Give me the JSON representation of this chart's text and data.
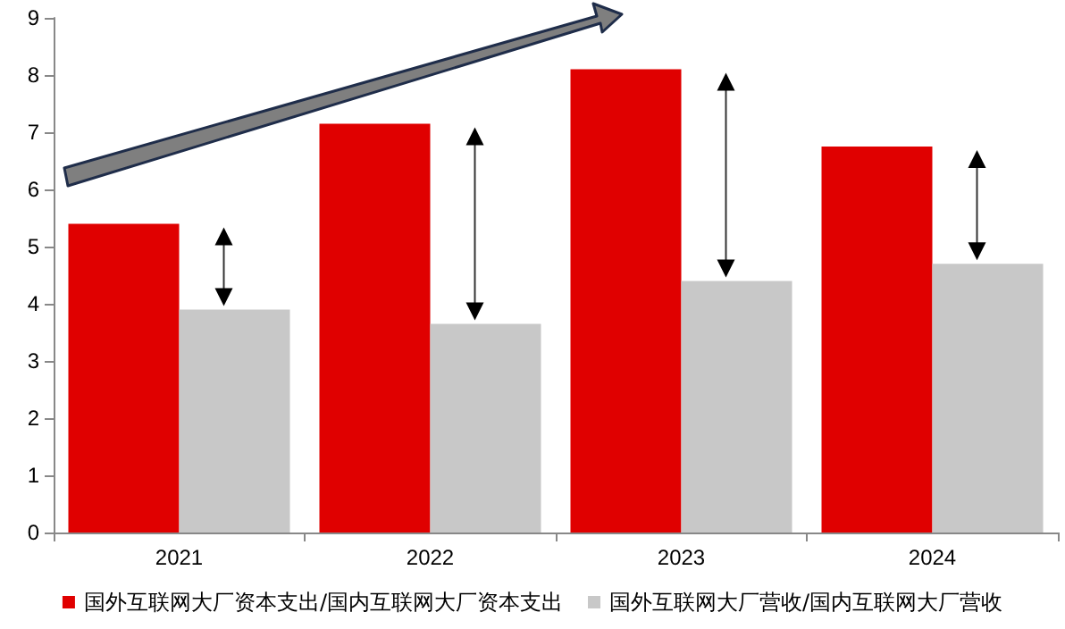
{
  "chart_data": {
    "type": "bar",
    "categories": [
      "2021",
      "2022",
      "2023",
      "2024"
    ],
    "series": [
      {
        "name": "国外互联网大厂资本支出/国内互联网大厂资本支出",
        "color": "#e00000",
        "values": [
          5.4,
          7.15,
          8.1,
          6.75
        ]
      },
      {
        "name": "国外互联网大厂营收/国内互联网大厂营收",
        "color": "#c8c8c8",
        "values": [
          3.9,
          3.65,
          4.4,
          4.7
        ]
      }
    ],
    "ylim": [
      0,
      9
    ],
    "yticks": [
      0,
      1,
      2,
      3,
      4,
      5,
      6,
      7,
      8,
      9
    ],
    "grid": false,
    "legend": "bottom"
  }
}
